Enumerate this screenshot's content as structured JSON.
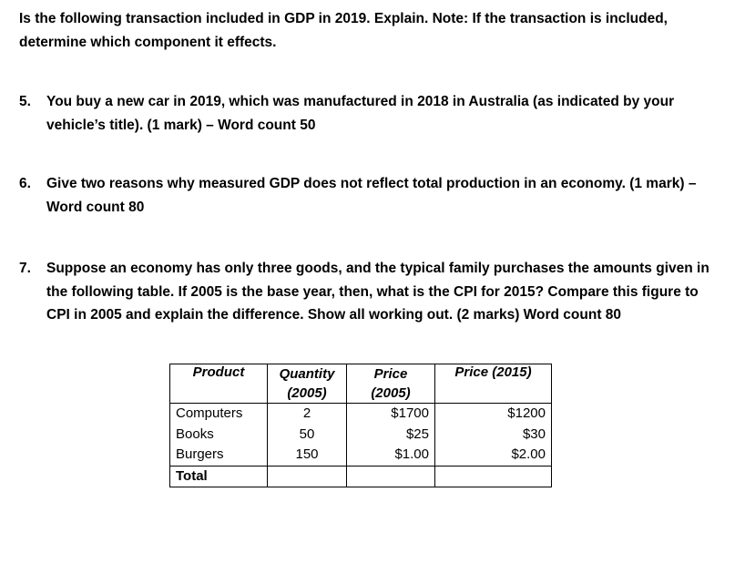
{
  "intro": "Is the following transaction included in GDP in 2019. Explain. Note: If the transaction is included, determine which component it effects.",
  "questions": [
    {
      "number": "5.",
      "text": "You buy a new car in 2019, which was manufactured in 2018 in Australia (as indicated by your vehicle’s title). (1 mark) – Word count 50"
    },
    {
      "number": "6.",
      "text": "Give two reasons why measured GDP does not reflect total production in an economy. (1 mark) – Word count 80"
    },
    {
      "number": "7.",
      "text": "Suppose an economy has only three goods, and the typical family purchases the amounts given in the following table. If 2005 is the base year, then, what is the CPI for 2015? Compare this figure to CPI in 2005 and explain the difference. Show all working out. (2 marks) Word count 80"
    }
  ],
  "table": {
    "headers": {
      "product": "Product",
      "quantity": "Quantity (2005)",
      "price2005": "Price (2005)",
      "price2015": "Price (2015)"
    },
    "rows": [
      {
        "product": "Computers",
        "quantity": "2",
        "price2005": "$1700",
        "price2015": "$1200"
      },
      {
        "product": "Books",
        "quantity": "50",
        "price2005": "$25",
        "price2015": "$30"
      },
      {
        "product": "Burgers",
        "quantity": "150",
        "price2005": "$1.00",
        "price2015": "$2.00"
      }
    ],
    "total_label": "Total"
  }
}
